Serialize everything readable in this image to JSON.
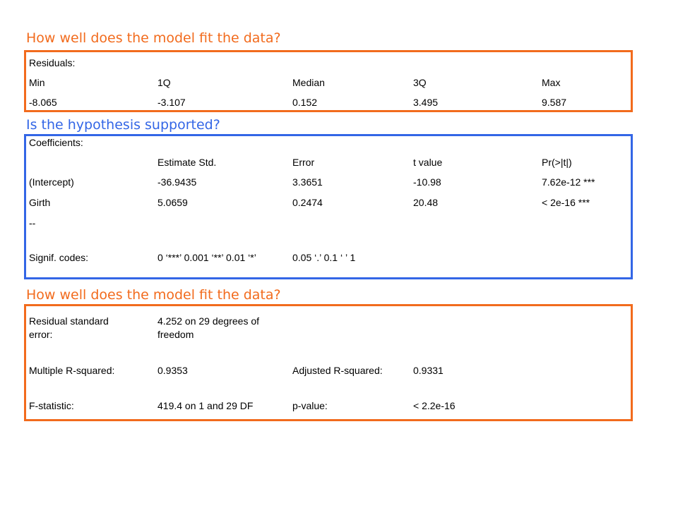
{
  "colors": {
    "orange": "#f26b1d",
    "blue": "#3366e6"
  },
  "section1": {
    "heading": "How well does the model fit the data?",
    "label": "Residuals:",
    "headers": [
      "Min",
      "1Q",
      "Median",
      "3Q",
      "Max"
    ],
    "values": [
      "-8.065",
      "-3.107",
      "0.152",
      "3.495",
      "9.587"
    ]
  },
  "section2": {
    "heading": "Is the hypothesis supported?",
    "label": "Coefficients:",
    "headers": [
      "Estimate Std.",
      "Error",
      "t value",
      "Pr(>|t|)"
    ],
    "rows": [
      {
        "name": "(Intercept)",
        "estimate": "-36.9435",
        "error": "3.3651",
        "t": "-10.98",
        "p": "7.62e-12 ***"
      },
      {
        "name": "Girth",
        "estimate": "5.0659",
        "error": "0.2474",
        "t": "20.48",
        "p": "< 2e-16 ***"
      }
    ],
    "separator": "--",
    "signif_label": "Signif. codes:",
    "signif_codes_a": "0 ‘***’  0.001 ‘**’  0.01 ‘*’",
    "signif_codes_b": "0.05 ‘.’ 0.1 ‘ ’ 1"
  },
  "section3": {
    "heading": "How well does the model fit the data?",
    "rse_label": "Residual standard error:",
    "rse_value": "4.252 on 29 degrees of freedom",
    "mr2_label": "Multiple R-squared:",
    "mr2_value": "0.9353",
    "ar2_label": "Adjusted R-squared:",
    "ar2_value": "0.9331",
    "f_label": "F-statistic:",
    "f_value": "419.4 on 1 and 29 DF",
    "p_label": "p-value:",
    "p_value": "< 2.2e-16"
  }
}
